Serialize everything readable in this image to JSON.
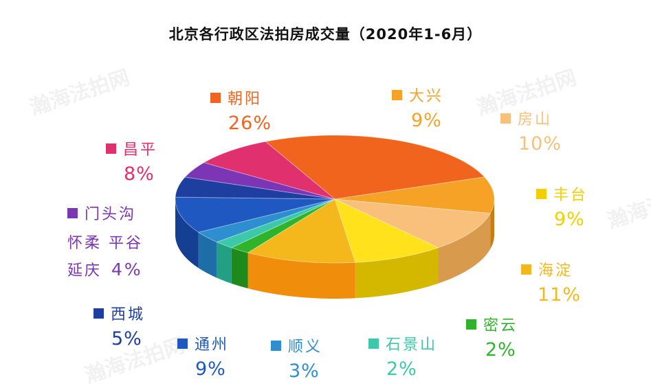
{
  "watermark": "瀚海法拍网",
  "chart_data": {
    "type": "pie",
    "title": "北京各行政区法拍房成交量（2020年1-6月）",
    "unit": "%",
    "slices": [
      {
        "name": "朝阳",
        "value": 26,
        "label": "26%",
        "color": "#f0641e",
        "side": "#c24a10"
      },
      {
        "name": "大兴",
        "value": 9,
        "label": "9%",
        "color": "#f5a227",
        "side": "#c97c12"
      },
      {
        "name": "房山",
        "value": 10,
        "label": "10%",
        "color": "#f8c07a",
        "side": "#d89a4c"
      },
      {
        "name": "丰台",
        "value": 9,
        "label": "9%",
        "color": "#ffe21c",
        "side": "#d4b800"
      },
      {
        "name": "海淀",
        "value": 11,
        "label": "11%",
        "color": "#f5b81c",
        "side": "#f08e0c"
      },
      {
        "name": "密云",
        "value": 2,
        "label": "2%",
        "color": "#2fb32a",
        "side": "#1e8a1c"
      },
      {
        "name": "石景山",
        "value": 2,
        "label": "2%",
        "color": "#3cc9a9",
        "side": "#22a084"
      },
      {
        "name": "顺义",
        "value": 3,
        "label": "3%",
        "color": "#2e8fd0",
        "side": "#1d6ea8"
      },
      {
        "name": "通州",
        "value": 9,
        "label": "9%",
        "color": "#1e58c0",
        "side": "#143f92"
      },
      {
        "name": "西城",
        "value": 5,
        "label": "5%",
        "color": "#1e3fa0",
        "side": "#122a78"
      },
      {
        "name": "门头沟 怀柔 平谷 延庆",
        "value": 4,
        "label": "4%",
        "color": "#7b35b5",
        "side": "#57208a"
      },
      {
        "name": "昌平",
        "value": 8,
        "label": "8%",
        "color": "#e0306e",
        "side": "#b0184e"
      }
    ]
  },
  "legend_text": {
    "chaoyang": {
      "name": "朝阳",
      "pct": "26%",
      "color": "#f0641e"
    },
    "daxing": {
      "name": "大兴",
      "pct": "9%",
      "color": "#f5a227"
    },
    "fangshan": {
      "name": "房山",
      "pct": "10%",
      "color": "#f8c07a"
    },
    "fengtai": {
      "name": "丰台",
      "pct": "9%",
      "color": "#f2d000"
    },
    "haidian": {
      "name": "海淀",
      "pct": "11%",
      "color": "#f5b81c"
    },
    "miyun": {
      "name": "密云",
      "pct": "2%",
      "color": "#2fb32a"
    },
    "shijingshan": {
      "name": "石景山",
      "pct": "2%",
      "color": "#3cc9a9"
    },
    "shunyi": {
      "name": "顺义",
      "pct": "3%",
      "color": "#2e8fd0"
    },
    "tongzhou": {
      "name": "通州",
      "pct": "9%",
      "color": "#1e58c0"
    },
    "xicheng": {
      "name": "西城",
      "pct": "5%",
      "color": "#1e3fa0"
    },
    "mentougou": {
      "name": "门头沟",
      "line2": "怀柔 平谷",
      "line3": "延庆",
      "pct": "4%",
      "color": "#7b35b5"
    },
    "changping": {
      "name": "昌平",
      "pct": "8%",
      "color": "#e0306e"
    }
  }
}
